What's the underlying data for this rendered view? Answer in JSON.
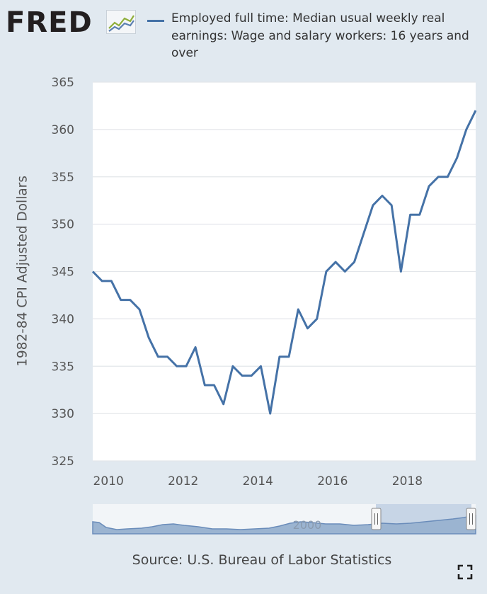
{
  "brand": {
    "logo_text": "FRED",
    "logo_icon": "fred-graph-icon"
  },
  "legend": {
    "text": "Employed full time: Median usual weekly real earnings: Wage and salary workers: 16 years and over",
    "color": "#4572a7"
  },
  "source_text": "Source: U.S. Bureau of Labor Statistics",
  "navigator": {
    "tick_label": "2000"
  },
  "colors": {
    "line": "#4572a7",
    "page_bg": "#e1e9f0",
    "plot_bg": "#ffffff",
    "navigator_fill": "#9bb4d1"
  },
  "icons": {
    "expand": "expand-fullscreen-icon"
  },
  "chart_data": {
    "type": "line",
    "title": "",
    "xlabel": "",
    "ylabel": "1982-84 CPI Adjusted Dollars",
    "xlim": [
      2009.58,
      2019.83
    ],
    "ylim": [
      325,
      365
    ],
    "yticks": [
      "325",
      "330",
      "335",
      "340",
      "345",
      "350",
      "355",
      "360",
      "365"
    ],
    "xticks": [
      "2010",
      "2012",
      "2014",
      "2016",
      "2018"
    ],
    "grid": true,
    "legend_position": "top",
    "series": [
      {
        "name": "Employed full time: Median usual weekly real earnings: Wage and salary workers: 16 years and over",
        "x": [
          "2009-Q3",
          "2009-Q4",
          "2010-Q1",
          "2010-Q2",
          "2010-Q3",
          "2010-Q4",
          "2011-Q1",
          "2011-Q2",
          "2011-Q3",
          "2011-Q4",
          "2012-Q1",
          "2012-Q2",
          "2012-Q3",
          "2012-Q4",
          "2013-Q1",
          "2013-Q2",
          "2013-Q3",
          "2013-Q4",
          "2014-Q1",
          "2014-Q2",
          "2014-Q3",
          "2014-Q4",
          "2015-Q1",
          "2015-Q2",
          "2015-Q3",
          "2015-Q4",
          "2016-Q1",
          "2016-Q2",
          "2016-Q3",
          "2016-Q4",
          "2017-Q1",
          "2017-Q2",
          "2017-Q3",
          "2017-Q4",
          "2018-Q1",
          "2018-Q2",
          "2018-Q3",
          "2018-Q4",
          "2019-Q1",
          "2019-Q2",
          "2019-Q3",
          "2019-Q4"
        ],
        "values": [
          345,
          344,
          344,
          342,
          342,
          341,
          338,
          336,
          336,
          335,
          335,
          337,
          333,
          333,
          331,
          335,
          334,
          334,
          335,
          330,
          336,
          336,
          341,
          339,
          340,
          345,
          346,
          345,
          346,
          349,
          352,
          353,
          352,
          345,
          351,
          351,
          354,
          355,
          355,
          357,
          360,
          362
        ]
      }
    ]
  }
}
